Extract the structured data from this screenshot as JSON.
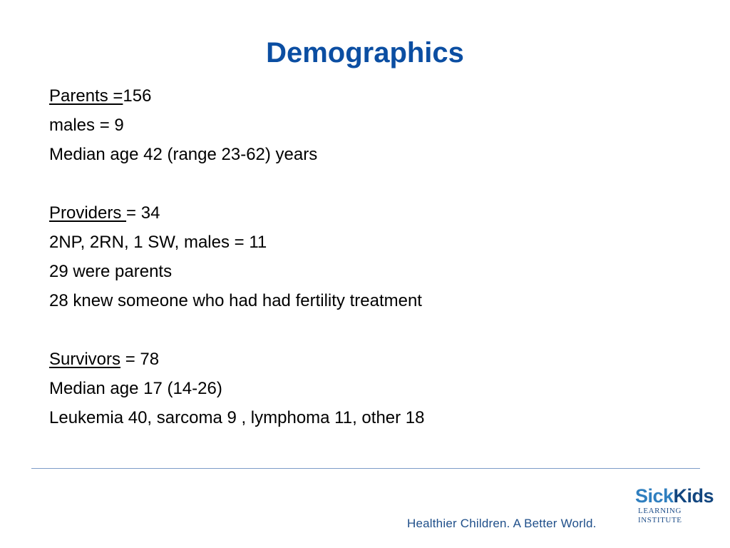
{
  "title": "Demographics",
  "parents": {
    "label": "Parents =",
    "value": "156",
    "lines": [
      "males = 9",
      "Median age 42 (range 23-62) years"
    ]
  },
  "providers": {
    "label": "Providers ",
    "value": "= 34",
    "lines": [
      "2NP, 2RN, 1 SW, males = 11",
      "29 were parents",
      "28 knew someone who had had fertility treatment"
    ]
  },
  "survivors": {
    "label": "Survivors",
    "value": " = 78",
    "lines": [
      "Median age 17 (14-26)",
      "Leukemia 40, sarcoma 9 , lymphoma 11, other 18"
    ]
  },
  "footer": {
    "tagline": "Healthier Children. A Better World.",
    "logo": {
      "sick": "Sick",
      "kids": "Kids",
      "line1": "LEARNING",
      "line2": "INSTITUTE"
    }
  },
  "colors": {
    "title": "#0b4ea2",
    "rule": "#7d9cc8",
    "logo_light": "#2f7fbf",
    "logo_dark": "#12467f"
  }
}
